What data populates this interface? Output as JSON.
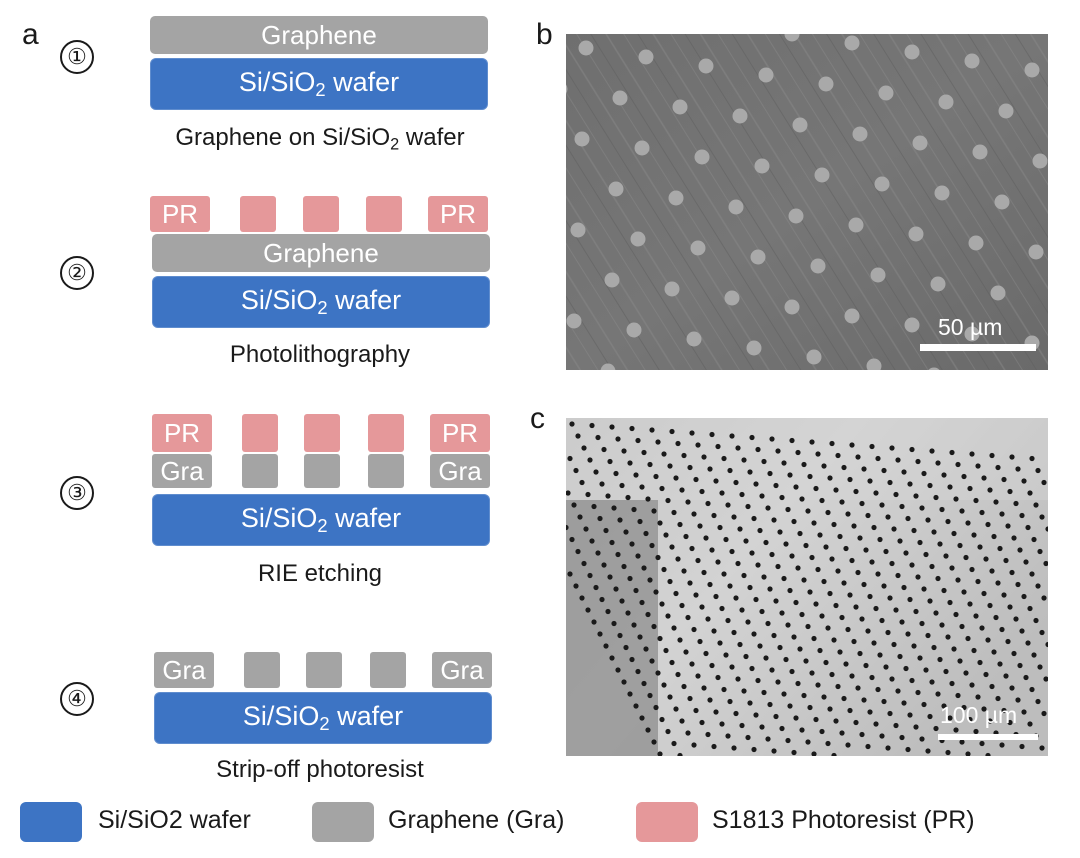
{
  "panel_labels": {
    "a": "a",
    "b": "b",
    "c": "c"
  },
  "steps": [
    {
      "number": "①",
      "caption_pre": "Graphene on Si/SiO",
      "caption_sub": "2",
      "caption_post": " wafer"
    },
    {
      "number": "②",
      "caption": "Photolithography"
    },
    {
      "number": "③",
      "caption": "RIE etching"
    },
    {
      "number": "④",
      "caption": "Strip-off photoresist"
    }
  ],
  "layers": {
    "graphene": "Graphene",
    "wafer_pre": "Si/SiO",
    "wafer_sub": "2",
    "wafer_post": " wafer",
    "pr": "PR",
    "gra": "Gra"
  },
  "micrographs": {
    "b": {
      "scale_label": "50 µm"
    },
    "c": {
      "scale_label": "100 µm"
    }
  },
  "legend": [
    {
      "label": "Si/SiO2 wafer",
      "color": "#3d74c4"
    },
    {
      "label": "Graphene (Gra)",
      "color": "#a4a4a4"
    },
    {
      "label": "S1813 Photoresist (PR)",
      "color": "#e5989a"
    }
  ],
  "colors": {
    "wafer": "#3d74c4",
    "graphene": "#a4a4a4",
    "photoresist": "#e5989a"
  }
}
